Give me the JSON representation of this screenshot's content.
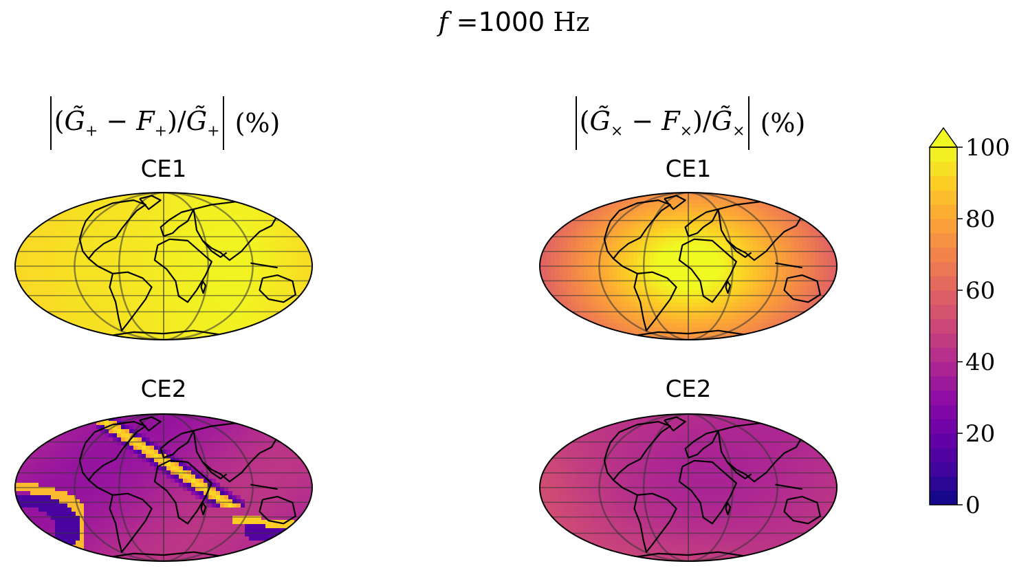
{
  "suptitle": {
    "f_symbol": "f",
    "eq": " =",
    "value": "1000",
    "unit": " Hz"
  },
  "columns": [
    {
      "pol_sub": "+",
      "suffix": " (%)"
    },
    {
      "pol_sub": "×",
      "suffix": " (%)"
    }
  ],
  "colormap": "plasma",
  "chart_data": [
    {
      "type": "heatmap",
      "projection": "mollweide",
      "column": "plus",
      "title": "CE1",
      "value_range_percent": [
        82,
        100
      ],
      "description_values": {
        "min": 82,
        "max": 100,
        "typical": 95
      }
    },
    {
      "type": "heatmap",
      "projection": "mollweide",
      "column": "cross",
      "title": "CE1",
      "value_range_percent": [
        58,
        100
      ],
      "description_values": {
        "min": 58,
        "max": 100,
        "typical": 85
      }
    },
    {
      "type": "heatmap",
      "projection": "mollweide",
      "column": "plus",
      "title": "CE2",
      "value_range_percent": [
        0,
        100
      ],
      "description_values": {
        "min": 0,
        "max": 100,
        "typical": 40
      }
    },
    {
      "type": "heatmap",
      "projection": "mollweide",
      "column": "cross",
      "title": "CE2",
      "value_range_percent": [
        35,
        55
      ],
      "description_values": {
        "min": 35,
        "max": 55,
        "typical": 45
      }
    }
  ],
  "colorbar": {
    "min": 0,
    "max": 100,
    "ticks": [
      "0",
      "20",
      "40",
      "60",
      "80",
      "100"
    ],
    "extend": "max"
  }
}
